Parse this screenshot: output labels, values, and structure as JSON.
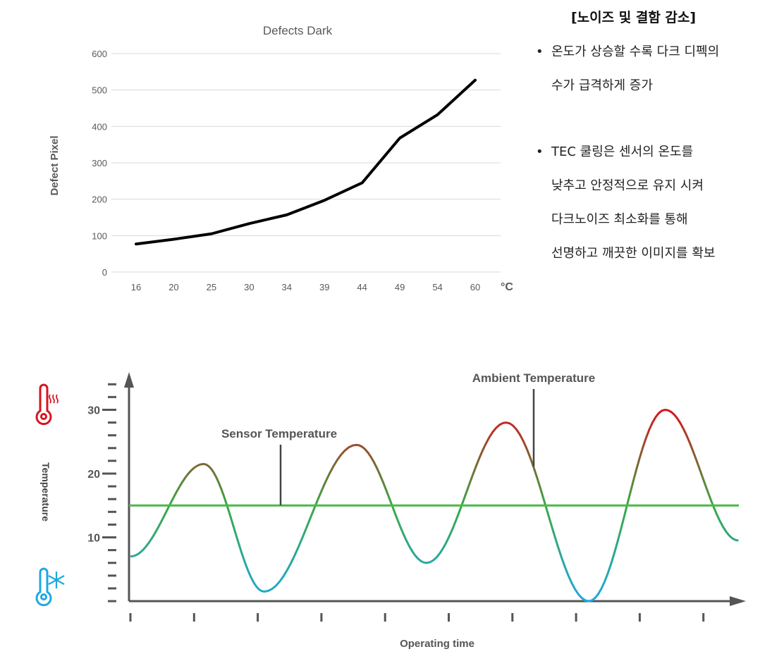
{
  "chart_data": [
    {
      "type": "line",
      "title": "Defects Dark",
      "xlabel": "°C",
      "ylabel": "Defect Pixel",
      "categories": [
        "16",
        "20",
        "25",
        "30",
        "34",
        "39",
        "44",
        "49",
        "54",
        "60"
      ],
      "series": [
        {
          "values": [
            77,
            90,
            105,
            133,
            157,
            197,
            245,
            368,
            432,
            527
          ]
        }
      ],
      "yticks": [
        "0",
        "100",
        "200",
        "300",
        "400",
        "500",
        "600"
      ],
      "ylim": [
        0,
        600
      ],
      "grid": true,
      "colors": {
        "line": "#000000",
        "grid": "#d9d9d9",
        "text": "#595959"
      }
    },
    {
      "type": "line",
      "xlabel": "Operating time",
      "ylabel": "Temperature",
      "yticks": [
        "10",
        "20",
        "30"
      ],
      "ylim": [
        0,
        34
      ],
      "xlim": [
        0,
        9.8
      ],
      "annotations": [
        "Sensor Temperature",
        "Ambient Temperature"
      ],
      "series": [
        {
          "x": [
            0,
            1.15,
            2.1,
            3.55,
            4.65,
            5.9,
            7.2,
            8.4,
            9.55
          ],
          "y": [
            7,
            21.5,
            1.5,
            24.5,
            6,
            28,
            0,
            30,
            9.5
          ]
        },
        {
          "x": [
            0,
            9.55
          ],
          "y": [
            15,
            15
          ]
        }
      ],
      "colors": {
        "hot": "#d7141e",
        "mid": "#3aa845",
        "cold": "#1ea8e0",
        "flat": "#4cb848",
        "axis": "#555555"
      },
      "icons": [
        "thermometer-hot-icon",
        "thermometer-cold-icon"
      ]
    }
  ],
  "notes": {
    "title": "[노이즈 및 결함 감소]",
    "bullet": "•",
    "items": [
      {
        "lines": [
          "온도가 상승할 수록 다크 디펙의",
          "수가 급격하게 증가"
        ]
      },
      {
        "lines": [
          "TEC 쿨링은 센서의 온도를",
          "낮추고 안정적으로 유지 시켜",
          "다크노이즈 최소화를 통해",
          "선명하고 깨끗한 이미지를 확보"
        ]
      }
    ]
  }
}
